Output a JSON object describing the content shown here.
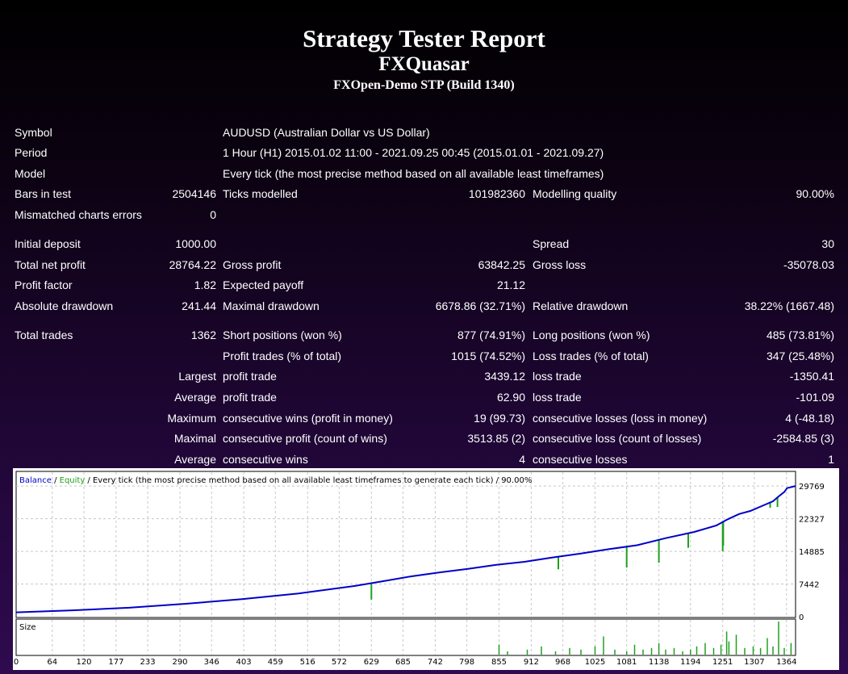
{
  "title": "Strategy Tester Report",
  "expert": "FXQuasar",
  "server": "FXOpen-Demo STP (Build 1340)",
  "rows": {
    "symbol": {
      "label": "Symbol",
      "value": "AUDUSD (Australian Dollar vs US Dollar)"
    },
    "period": {
      "label": "Period",
      "value": "1 Hour (H1) 2015.01.02 11:00 - 2021.09.25 00:45 (2015.01.01 - 2021.09.27)"
    },
    "model": {
      "label": "Model",
      "value": "Every tick (the most precise method based on all available least timeframes)"
    },
    "bars": {
      "label": "Bars in test",
      "value": "2504146",
      "label2": "Ticks modelled",
      "value2": "101982360",
      "label3": "Modelling quality",
      "value3": "90.00%"
    },
    "mismatch": {
      "label": "Mismatched charts errors",
      "value": "0"
    },
    "deposit": {
      "label": "Initial deposit",
      "value": "1000.00",
      "label3": "Spread",
      "value3": "30"
    },
    "netprofit": {
      "label": "Total net profit",
      "value": "28764.22",
      "label2": "Gross profit",
      "value2": "63842.25",
      "label3": "Gross loss",
      "value3": "-35078.03"
    },
    "pfactor": {
      "label": "Profit factor",
      "value": "1.82",
      "label2": "Expected payoff",
      "value2": "21.12"
    },
    "absdd": {
      "label": "Absolute drawdown",
      "value": "241.44",
      "label2": "Maximal drawdown",
      "value2": "6678.86 (32.71%)",
      "label3": "Relative drawdown",
      "value3": "38.22% (1667.48)"
    },
    "trades": {
      "label": "Total trades",
      "value": "1362",
      "label2": "Short positions (won %)",
      "value2": "877 (74.91%)",
      "label3": "Long positions (won %)",
      "value3": "485 (73.81%)"
    },
    "ptrades": {
      "label2": "Profit trades (% of total)",
      "value2": "1015 (74.52%)",
      "label3": "Loss trades (% of total)",
      "value3": "347 (25.48%)"
    },
    "largest": {
      "value": "Largest",
      "label2": "profit trade",
      "value2": "3439.12",
      "label3": "loss trade",
      "value3": "-1350.41"
    },
    "average": {
      "value": "Average",
      "label2": "profit trade",
      "value2": "62.90",
      "label3": "loss trade",
      "value3": "-101.09"
    },
    "maximum": {
      "value": "Maximum",
      "label2": "consecutive wins (profit in money)",
      "value2": "19 (99.73)",
      "label3": "consecutive losses (loss in money)",
      "value3": "4 (-48.18)"
    },
    "maximal": {
      "value": "Maximal",
      "label2": "consecutive profit (count of wins)",
      "value2": "3513.85 (2)",
      "label3": "consecutive loss (count of losses)",
      "value3": "-2584.85 (3)"
    },
    "average2": {
      "value": "Average",
      "label2": "consecutive wins",
      "value2": "4",
      "label3": "consecutive losses",
      "value3": "1"
    }
  },
  "chart_data": {
    "type": "line",
    "legend": {
      "balance": "Balance",
      "sep": " / ",
      "equity": "Equity",
      "rest": " / Every tick (the most precise method based on all available least timeframes to generate each tick) / 90.00%"
    },
    "colors": {
      "balance": "#0000c8",
      "equity": "#1fa01f",
      "volume": "#1fa01f"
    },
    "y_ticks": [
      0,
      7442,
      14885,
      22327,
      29769
    ],
    "ylim": [
      0,
      32000
    ],
    "x_ticks": [
      0,
      64,
      120,
      177,
      233,
      290,
      346,
      403,
      459,
      516,
      572,
      629,
      685,
      742,
      798,
      855,
      912,
      968,
      1025,
      1081,
      1138,
      1194,
      1251,
      1307,
      1364
    ],
    "xlim": [
      0,
      1380
    ],
    "balance": {
      "x": [
        0,
        100,
        200,
        300,
        400,
        500,
        600,
        650,
        700,
        750,
        800,
        850,
        900,
        950,
        1000,
        1050,
        1100,
        1150,
        1200,
        1240,
        1260,
        1280,
        1300,
        1320,
        1340,
        1350,
        1360,
        1365,
        1380
      ],
      "y": [
        1000,
        1450,
        2050,
        2950,
        4000,
        5300,
        7000,
        8100,
        9200,
        10100,
        10900,
        11800,
        12500,
        13500,
        14400,
        15400,
        16300,
        17900,
        19300,
        20800,
        22200,
        23400,
        24100,
        25200,
        26300,
        27400,
        28400,
        29300,
        29769
      ]
    },
    "equity_dips": [
      {
        "x": 629,
        "y": 3900
      },
      {
        "x": 960,
        "y": 10800
      },
      {
        "x": 1081,
        "y": 11200
      },
      {
        "x": 1138,
        "y": 12300
      },
      {
        "x": 1190,
        "y": 15700
      },
      {
        "x": 1251,
        "y": 14900
      },
      {
        "x": 1252,
        "y": 16200
      },
      {
        "x": 1335,
        "y": 24800
      },
      {
        "x": 1348,
        "y": 25000
      }
    ],
    "size_panel": {
      "label": "Size"
    },
    "volume": [
      {
        "x": 855,
        "h": 0.3
      },
      {
        "x": 870,
        "h": 0.1
      },
      {
        "x": 905,
        "h": 0.15
      },
      {
        "x": 930,
        "h": 0.25
      },
      {
        "x": 955,
        "h": 0.1
      },
      {
        "x": 980,
        "h": 0.2
      },
      {
        "x": 1000,
        "h": 0.15
      },
      {
        "x": 1025,
        "h": 0.25
      },
      {
        "x": 1040,
        "h": 0.55
      },
      {
        "x": 1060,
        "h": 0.15
      },
      {
        "x": 1081,
        "h": 0.1
      },
      {
        "x": 1095,
        "h": 0.3
      },
      {
        "x": 1110,
        "h": 0.15
      },
      {
        "x": 1125,
        "h": 0.2
      },
      {
        "x": 1138,
        "h": 0.35
      },
      {
        "x": 1150,
        "h": 0.15
      },
      {
        "x": 1165,
        "h": 0.2
      },
      {
        "x": 1180,
        "h": 0.1
      },
      {
        "x": 1194,
        "h": 0.15
      },
      {
        "x": 1205,
        "h": 0.25
      },
      {
        "x": 1220,
        "h": 0.35
      },
      {
        "x": 1235,
        "h": 0.2
      },
      {
        "x": 1248,
        "h": 0.3
      },
      {
        "x": 1258,
        "h": 0.7
      },
      {
        "x": 1262,
        "h": 0.4
      },
      {
        "x": 1275,
        "h": 0.6
      },
      {
        "x": 1290,
        "h": 0.2
      },
      {
        "x": 1305,
        "h": 0.25
      },
      {
        "x": 1318,
        "h": 0.2
      },
      {
        "x": 1330,
        "h": 0.5
      },
      {
        "x": 1340,
        "h": 0.25
      },
      {
        "x": 1350,
        "h": 1.0
      },
      {
        "x": 1360,
        "h": 0.2
      },
      {
        "x": 1372,
        "h": 0.35
      }
    ]
  }
}
